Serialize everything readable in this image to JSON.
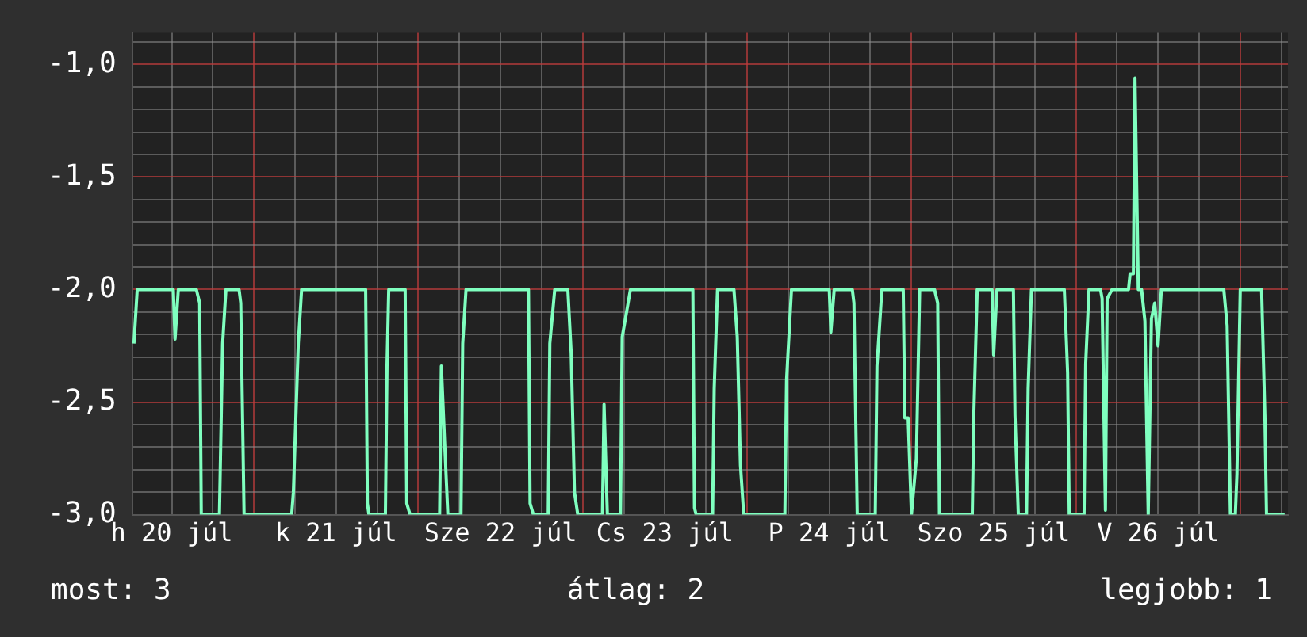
{
  "chart_data": {
    "type": "line",
    "x": [
      "--07-20T06:29",
      "--07-20T06:58",
      "--07-20T12:14",
      "--07-20T12:29",
      "--07-20T12:58",
      "--07-20T15:36",
      "--07-20T16:05",
      "--07-20T16:19",
      "--07-20T18:58",
      "--07-20T19:26",
      "--07-20T19:55",
      "--07-20T21:50",
      "--07-20T22:05",
      "--07-20T22:34",
      "--07-21T05:31",
      "--07-21T05:46",
      "--07-21T06:29",
      "--07-21T06:58",
      "--07-21T16:19",
      "--07-21T16:34",
      "--07-21T16:48",
      "--07-21T19:12",
      "--07-21T19:26",
      "--07-21T19:41",
      "--07-21T22:05",
      "--07-21T22:19",
      "--07-21T22:48",
      "--07-22T03:07",
      "--07-22T03:22",
      "--07-22T03:50",
      "--07-22T04:19",
      "--07-22T06:14",
      "--07-22T06:29",
      "--07-22T06:58",
      "--07-22T16:05",
      "--07-22T16:19",
      "--07-22T16:48",
      "--07-22T18:58",
      "--07-22T19:12",
      "--07-22T19:55",
      "--07-22T21:50",
      "--07-22T22:19",
      "--07-22T22:48",
      "--07-22T23:17",
      "--07-23T02:53",
      "--07-23T03:07",
      "--07-23T03:36",
      "--07-23T05:31",
      "--07-23T05:46",
      "--07-23T06:14",
      "--07-23T06:58",
      "--07-23T16:05",
      "--07-23T16:19",
      "--07-23T16:34",
      "--07-23T18:58",
      "--07-23T19:12",
      "--07-23T19:41",
      "--07-23T22:05",
      "--07-23T22:34",
      "--07-23T23:02",
      "--07-23T23:31",
      "--07-24T05:31",
      "--07-24T05:46",
      "--07-24T06:29",
      "--07-24T12:00",
      "--07-24T12:14",
      "--07-24T12:43",
      "--07-24T15:22",
      "--07-24T15:36",
      "--07-24T16:05",
      "--07-24T18:43",
      "--07-24T18:58",
      "--07-24T19:41",
      "--07-24T22:48",
      "--07-24T23:02",
      "--07-24T23:31",
      "--07-25T00:00",
      "--07-25T00:43",
      "--07-25T01:12",
      "--07-25T03:22",
      "--07-25T03:50",
      "--07-25T04:05",
      "--07-25T08:53",
      "--07-25T09:07",
      "--07-25T09:36",
      "--07-25T11:46",
      "--07-25T12:00",
      "--07-25T12:29",
      "--07-25T14:53",
      "--07-25T15:07",
      "--07-25T15:36",
      "--07-25T16:48",
      "--07-25T17:02",
      "--07-25T17:31",
      "--07-25T22:19",
      "--07-25T22:48",
      "--07-25T23:02",
      "--07-26T01:12",
      "--07-26T01:26",
      "--07-26T01:55",
      "--07-26T03:36",
      "--07-26T03:50",
      "--07-26T04:19",
      "--07-26T04:34",
      "--07-26T05:17",
      "--07-26T07:41",
      "--07-26T07:55",
      "--07-26T08:24",
      "--07-26T08:38",
      "--07-26T09:07",
      "--07-26T09:36",
      "--07-26T10:05",
      "--07-26T10:34",
      "--07-26T11:02",
      "--07-26T11:31",
      "--07-26T12:00",
      "--07-26T12:29",
      "--07-26T21:36",
      "--07-26T22:05",
      "--07-26T22:34",
      "--07-26T23:17",
      "--07-26T23:31",
      "--07-27T00:00",
      "--07-27T03:07",
      "--07-27T03:36",
      "--07-27T03:50",
      "--07-27T06:29"
    ],
    "series": [
      {
        "color": "#7fffbf",
        "values": [
          -2.24,
          -2.0,
          -2.0,
          -2.22,
          -2.0,
          -2.0,
          -2.06,
          -3.0,
          -3.0,
          -2.24,
          -2.0,
          -2.0,
          -2.06,
          -3.0,
          -3.0,
          -2.9,
          -2.24,
          -2.0,
          -2.0,
          -2.95,
          -3.0,
          -3.0,
          -2.34,
          -2.0,
          -2.0,
          -2.95,
          -3.0,
          -3.0,
          -2.34,
          -2.67,
          -3.0,
          -3.0,
          -2.24,
          -2.0,
          -2.0,
          -2.95,
          -3.0,
          -3.0,
          -2.24,
          -2.0,
          -2.0,
          -2.28,
          -2.9,
          -3.0,
          -3.0,
          -2.51,
          -3.0,
          -3.0,
          -2.21,
          -2.13,
          -2.0,
          -2.0,
          -2.97,
          -3.0,
          -3.0,
          -2.44,
          -2.0,
          -2.0,
          -2.21,
          -2.78,
          -3.0,
          -3.0,
          -2.4,
          -2.0,
          -2.0,
          -2.19,
          -2.0,
          -2.0,
          -2.06,
          -3.0,
          -3.0,
          -2.34,
          -2.0,
          -2.0,
          -2.57,
          -2.57,
          -3.0,
          -2.75,
          -2.0,
          -2.0,
          -2.06,
          -3.0,
          -3.0,
          -2.54,
          -2.0,
          -2.0,
          -2.29,
          -2.0,
          -2.0,
          -2.56,
          -3.0,
          -3.0,
          -2.44,
          -2.0,
          -2.0,
          -2.37,
          -3.0,
          -3.0,
          -2.33,
          -2.0,
          -2.0,
          -2.04,
          -2.98,
          -2.04,
          -2.0,
          -2.0,
          -1.93,
          -1.93,
          -1.06,
          -2.0,
          -2.0,
          -2.14,
          -3.0,
          -2.13,
          -2.06,
          -2.25,
          -2.0,
          -2.0,
          -2.16,
          -3.0,
          -3.0,
          -2.82,
          -2.0,
          -2.0,
          -2.56,
          -3.0,
          -3.0
        ]
      }
    ],
    "xlim": [
      "--07-20T06:14",
      "--07-27T06:58"
    ],
    "xticks": [
      {
        "value": "--07-20T12:00",
        "label": "h 20 júl"
      },
      {
        "value": "--07-20T18:00",
        "label": null
      },
      {
        "value": "--07-21T00:00",
        "label": null
      },
      {
        "value": "--07-21T06:00",
        "label": null
      },
      {
        "value": "--07-21T12:00",
        "label": "k 21 júl"
      },
      {
        "value": "--07-21T18:00",
        "label": null
      },
      {
        "value": "--07-22T00:00",
        "label": null
      },
      {
        "value": "--07-22T06:00",
        "label": null
      },
      {
        "value": "--07-22T12:00",
        "label": "Sze 22 júl"
      },
      {
        "value": "--07-22T18:00",
        "label": null
      },
      {
        "value": "--07-23T00:00",
        "label": null
      },
      {
        "value": "--07-23T06:00",
        "label": null
      },
      {
        "value": "--07-23T12:00",
        "label": "Cs 23 júl"
      },
      {
        "value": "--07-23T18:00",
        "label": null
      },
      {
        "value": "--07-24T00:00",
        "label": null
      },
      {
        "value": "--07-24T06:00",
        "label": null
      },
      {
        "value": "--07-24T12:00",
        "label": "P 24 júl"
      },
      {
        "value": "--07-24T18:00",
        "label": null
      },
      {
        "value": "--07-25T00:00",
        "label": null
      },
      {
        "value": "--07-25T06:00",
        "label": null
      },
      {
        "value": "--07-25T12:00",
        "label": "Szo 25 júl"
      },
      {
        "value": "--07-25T18:00",
        "label": null
      },
      {
        "value": "--07-26T00:00",
        "label": null
      },
      {
        "value": "--07-26T06:00",
        "label": null
      },
      {
        "value": "--07-26T12:00",
        "label": "V 26 júl"
      },
      {
        "value": "--07-26T18:00",
        "label": null
      },
      {
        "value": "--07-27T00:00",
        "label": null
      },
      {
        "value": "--07-27T06:00",
        "label": null
      }
    ],
    "ylim": [
      -3.0,
      -0.86
    ],
    "yticks": [
      {
        "value": -3.0,
        "label": "-3,0"
      },
      {
        "value": -2.9,
        "label": null
      },
      {
        "value": -2.8,
        "label": null
      },
      {
        "value": -2.7,
        "label": null
      },
      {
        "value": -2.6,
        "label": null
      },
      {
        "value": -2.5,
        "label": "-2,5"
      },
      {
        "value": -2.4,
        "label": null
      },
      {
        "value": -2.3,
        "label": null
      },
      {
        "value": -2.2,
        "label": null
      },
      {
        "value": -2.1,
        "label": null
      },
      {
        "value": -2.0,
        "label": "-2,0"
      },
      {
        "value": -1.9,
        "label": null
      },
      {
        "value": -1.8,
        "label": null
      },
      {
        "value": -1.7,
        "label": null
      },
      {
        "value": -1.6,
        "label": null
      },
      {
        "value": -1.5,
        "label": "-1,5"
      },
      {
        "value": -1.4,
        "label": null
      },
      {
        "value": -1.3,
        "label": null
      },
      {
        "value": -1.2,
        "label": null
      },
      {
        "value": -1.1,
        "label": null
      },
      {
        "value": -1.0,
        "label": "-1,0"
      },
      {
        "value": -0.9,
        "label": null
      }
    ],
    "grid": true,
    "legend": false,
    "marker": "none",
    "line_style": "solid",
    "annotations": [
      "most: 3",
      "átlag: 2",
      "legjobb: 1"
    ]
  }
}
